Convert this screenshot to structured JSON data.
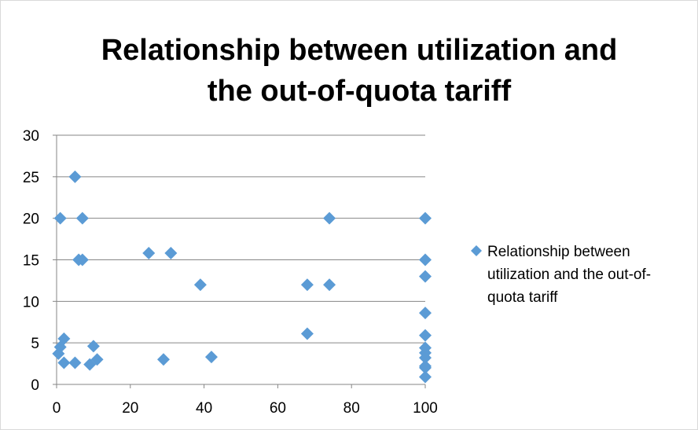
{
  "chart_data": {
    "type": "scatter",
    "title_lines": [
      "Relationship between utilization and",
      "the out-of-quota tariff"
    ],
    "xlabel": "",
    "ylabel": "",
    "xlim": [
      0,
      100
    ],
    "ylim": [
      0,
      30
    ],
    "x_ticks": [
      0,
      20,
      40,
      60,
      80,
      100
    ],
    "y_ticks": [
      0,
      5,
      10,
      15,
      20,
      25,
      30
    ],
    "grid": "horizontal",
    "legend_position": "right",
    "marker_color": "#5b9bd5",
    "series": [
      {
        "name": "Relationship between utilization and the out-of-quota tariff",
        "legend_lines": [
          "Relationship between",
          "utilization and the out-of-",
          "quota tariff"
        ],
        "points": [
          {
            "x": 1,
            "y": 20
          },
          {
            "x": 5,
            "y": 25
          },
          {
            "x": 7,
            "y": 20
          },
          {
            "x": 6,
            "y": 15
          },
          {
            "x": 7,
            "y": 15
          },
          {
            "x": 1,
            "y": 4.5
          },
          {
            "x": 2,
            "y": 5.5
          },
          {
            "x": 0.5,
            "y": 3.7
          },
          {
            "x": 2,
            "y": 2.6
          },
          {
            "x": 5,
            "y": 2.6
          },
          {
            "x": 9,
            "y": 2.4
          },
          {
            "x": 10,
            "y": 4.6
          },
          {
            "x": 11,
            "y": 3
          },
          {
            "x": 25,
            "y": 15.8
          },
          {
            "x": 31,
            "y": 15.8
          },
          {
            "x": 29,
            "y": 3
          },
          {
            "x": 39,
            "y": 12
          },
          {
            "x": 42,
            "y": 3.3
          },
          {
            "x": 68,
            "y": 12
          },
          {
            "x": 68,
            "y": 6.1
          },
          {
            "x": 74,
            "y": 20
          },
          {
            "x": 74,
            "y": 12
          },
          {
            "x": 100,
            "y": 20
          },
          {
            "x": 100,
            "y": 15
          },
          {
            "x": 100,
            "y": 13
          },
          {
            "x": 100,
            "y": 8.6
          },
          {
            "x": 100,
            "y": 5.9
          },
          {
            "x": 100,
            "y": 4.4
          },
          {
            "x": 100,
            "y": 3.8
          },
          {
            "x": 100,
            "y": 3.2
          },
          {
            "x": 100,
            "y": 2.2
          },
          {
            "x": 100,
            "y": 2
          },
          {
            "x": 100,
            "y": 0.9
          }
        ]
      }
    ]
  }
}
